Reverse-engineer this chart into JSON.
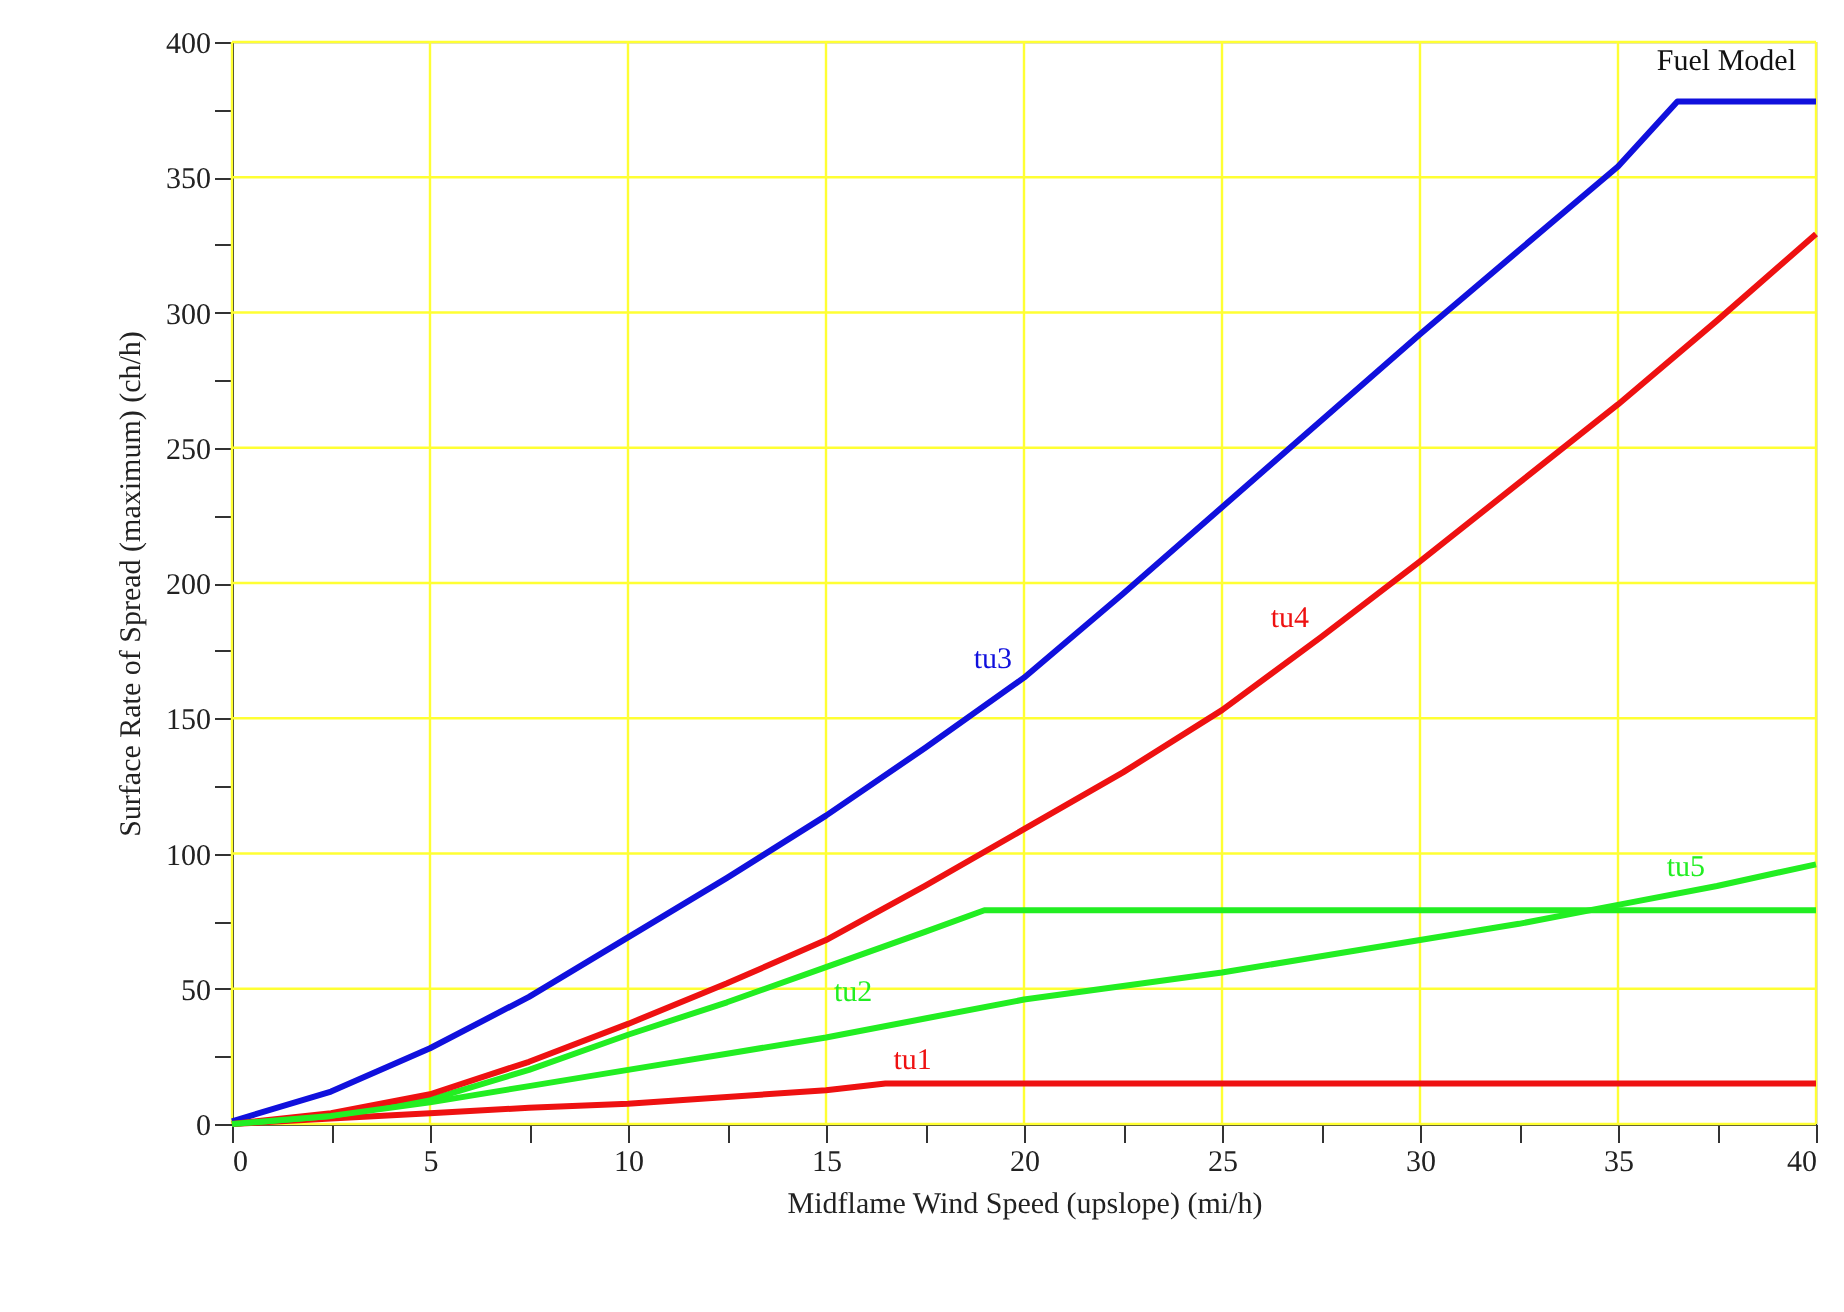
{
  "chart_data": {
    "type": "line",
    "xlabel": "Midflame Wind Speed (upslope) (mi/h)",
    "ylabel": "Surface Rate of Spread (maximum) (ch/h)",
    "legend_title": "Fuel Model",
    "xlim": [
      0,
      40
    ],
    "ylim": [
      0,
      400
    ],
    "xticks": [
      0,
      {
        "value": 2.5,
        "label": null
      },
      5,
      {
        "value": 7.5,
        "label": null
      },
      10,
      {
        "value": 12.5,
        "label": null
      },
      15,
      {
        "value": 17.5,
        "label": null
      },
      20,
      {
        "value": 22.5,
        "label": null
      },
      25,
      {
        "value": 27.5,
        "label": null
      },
      30,
      {
        "value": 32.5,
        "label": null
      },
      35,
      {
        "value": 37.5,
        "label": null
      },
      40
    ],
    "yticks": [
      0,
      {
        "value": 25,
        "label": null
      },
      50,
      {
        "value": 75,
        "label": null
      },
      100,
      {
        "value": 125,
        "label": null
      },
      150,
      {
        "value": 175,
        "label": null
      },
      200,
      {
        "value": 225,
        "label": null
      },
      250,
      {
        "value": 275,
        "label": null
      },
      300,
      {
        "value": 325,
        "label": null
      },
      350,
      {
        "value": 375,
        "label": null
      },
      400
    ],
    "grid": true,
    "marker": "none",
    "line_style": "solid",
    "series": [
      {
        "name": "tu1",
        "color": "#ee1111",
        "x": [
          0,
          2.5,
          5,
          7.5,
          10,
          12.5,
          15,
          16.5,
          40
        ],
        "values": [
          0,
          2,
          4,
          6,
          7.5,
          10,
          12.5,
          15,
          15
        ]
      },
      {
        "name": "tu2",
        "color": "#22ee22",
        "x": [
          0,
          2.5,
          5,
          7.5,
          10,
          12.5,
          15,
          17.5,
          19,
          40
        ],
        "values": [
          0,
          3,
          9,
          20,
          33,
          45,
          58,
          71,
          79,
          79
        ]
      },
      {
        "name": "tu3",
        "color": "#1010dd",
        "x": [
          0,
          2.5,
          5,
          7.5,
          10,
          12.5,
          15,
          17.5,
          20,
          22.5,
          25,
          27.5,
          30,
          32.5,
          35,
          36.5,
          40
        ],
        "values": [
          1,
          12,
          28,
          47,
          69,
          91,
          114,
          139,
          165,
          196,
          228,
          260,
          292,
          323,
          354,
          378,
          378
        ]
      },
      {
        "name": "tu4",
        "color": "#ee1111",
        "x": [
          0,
          2.5,
          5,
          7.5,
          10,
          12.5,
          15,
          17.5,
          20,
          22.5,
          25,
          27.5,
          30,
          32.5,
          35,
          37.5,
          40
        ],
        "values": [
          0,
          4,
          11,
          23,
          37,
          52,
          68,
          88,
          109,
          130,
          153,
          180,
          208,
          237,
          266,
          297,
          329
        ]
      },
      {
        "name": "tu5",
        "color": "#22ee22",
        "x": [
          0,
          2.5,
          5,
          7.5,
          10,
          12.5,
          15,
          17.5,
          20,
          22.5,
          25,
          27.5,
          30,
          32.5,
          35,
          37.5,
          40
        ],
        "values": [
          0,
          3,
          8,
          14,
          20,
          26,
          32,
          39,
          46,
          51,
          56,
          62,
          68,
          74,
          81,
          88,
          96
        ]
      }
    ]
  }
}
